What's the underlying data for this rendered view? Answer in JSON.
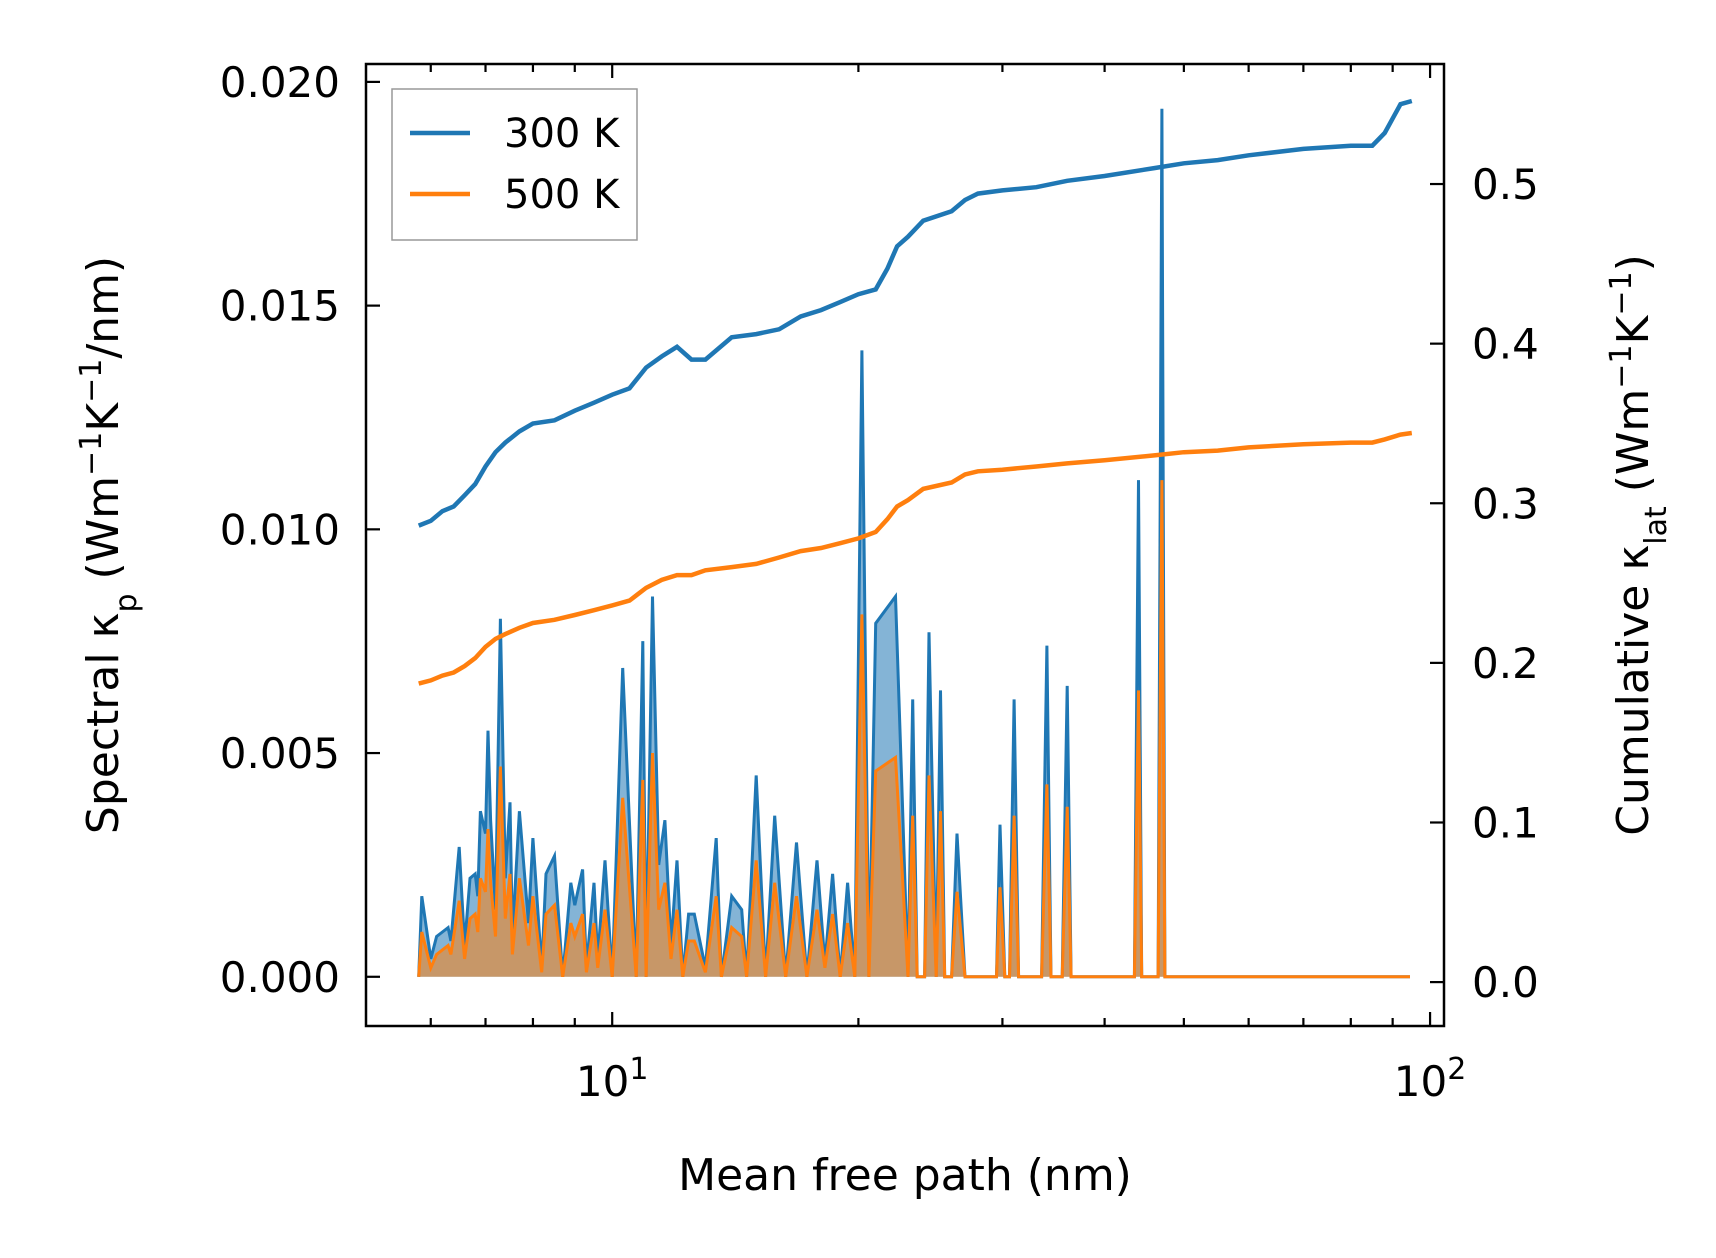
{
  "chart_data": {
    "type": "line",
    "xlabel": "Mean free path (nm)",
    "ylabel_left": {
      "main": "Spectral κ",
      "sub": "p",
      "units": " (Wm",
      "sup1": "−1",
      "k": "K",
      "sup2": "−1",
      "tail": "/nm)"
    },
    "ylabel_right": {
      "main": "Cumulative κ",
      "sub": "lat",
      "units": " (Wm",
      "sup1": "−1",
      "k": "K",
      "sup2": "−1",
      "tail": ")"
    },
    "xscale": "log",
    "xlim": [
      5.0,
      104.0
    ],
    "ylim_left": [
      -0.0011,
      0.0204
    ],
    "ylim_right": [
      -0.0275,
      0.5752
    ],
    "xticks": [
      {
        "base": "10",
        "exp": "1",
        "value": 10
      },
      {
        "base": "10",
        "exp": "2",
        "value": 100
      }
    ],
    "yticks_left": [
      {
        "label": "0.000",
        "value": 0.0
      },
      {
        "label": "0.005",
        "value": 0.005
      },
      {
        "label": "0.010",
        "value": 0.01
      },
      {
        "label": "0.015",
        "value": 0.015
      },
      {
        "label": "0.020",
        "value": 0.02
      }
    ],
    "yticks_right": [
      {
        "label": "0.0",
        "value": 0.0
      },
      {
        "label": "0.1",
        "value": 0.1
      },
      {
        "label": "0.2",
        "value": 0.2
      },
      {
        "label": "0.3",
        "value": 0.3
      },
      {
        "label": "0.4",
        "value": 0.4
      },
      {
        "label": "0.5",
        "value": 0.5
      }
    ],
    "legend": {
      "placement": "top-left",
      "entries": [
        "300 K",
        "500 K"
      ]
    },
    "colors": {
      "s300": "#1f77b4",
      "s500": "#ff7f0e",
      "fill300": "#1f77b4",
      "fill500": "#ff7f0e"
    },
    "spectral_300K": {
      "x": [
        5.8,
        5.85,
        6.0,
        6.1,
        6.2,
        6.3,
        6.35,
        6.5,
        6.6,
        6.7,
        6.8,
        6.85,
        6.9,
        7.0,
        7.05,
        7.1,
        7.2,
        7.3,
        7.4,
        7.5,
        7.55,
        7.7,
        7.9,
        8.0,
        8.2,
        8.3,
        8.5,
        8.7,
        8.9,
        9.0,
        9.2,
        9.3,
        9.5,
        9.6,
        9.8,
        10.0,
        10.3,
        10.7,
        10.9,
        11.0,
        11.2,
        11.4,
        11.6,
        11.8,
        12.0,
        12.2,
        12.4,
        12.6,
        13.0,
        13.4,
        13.6,
        14.0,
        14.4,
        14.6,
        15.0,
        15.4,
        15.8,
        16.3,
        16.8,
        17.3,
        17.8,
        18.2,
        18.6,
        19.0,
        19.4,
        19.8,
        20.2,
        20.6,
        21.0,
        22.2,
        22.6,
        23.0,
        23.3,
        23.6,
        24.1,
        24.4,
        24.9,
        25.2,
        25.5,
        26.0,
        26.4,
        27.0,
        29.5,
        29.8,
        30.2,
        30.6,
        31.0,
        31.4,
        33.5,
        34.0,
        34.4,
        35.5,
        36.0,
        36.4,
        43.5,
        44.0,
        44.4,
        46.5,
        47.0,
        47.4,
        55.0,
        55.5,
        56.0,
        59.0,
        59.5,
        60.0,
        87.0,
        88.0,
        89.0,
        91.0,
        92.0,
        93.0,
        94.5
      ],
      "y": [
        0.0,
        0.0018,
        0.0004,
        0.0009,
        0.001,
        0.0011,
        0.0008,
        0.0029,
        0.0007,
        0.0022,
        0.0023,
        0.0018,
        0.0037,
        0.0032,
        0.0055,
        0.0035,
        0.0015,
        0.008,
        0.0022,
        0.0039,
        0.0009,
        0.0037,
        0.0012,
        0.0031,
        0.0002,
        0.0023,
        0.0027,
        0.0,
        0.0021,
        0.0016,
        0.0024,
        0.0002,
        0.0021,
        0.0004,
        0.0026,
        0.0,
        0.0069,
        0.0,
        0.0075,
        0.0,
        0.0085,
        0.0025,
        0.0035,
        0.0007,
        0.0026,
        0.0,
        0.0014,
        0.0014,
        0.0002,
        0.0031,
        0.0,
        0.0018,
        0.0015,
        0.0,
        0.0045,
        0.0,
        0.0036,
        0.0,
        0.003,
        0.0,
        0.0026,
        0.0003,
        0.0023,
        0.0,
        0.0021,
        0.0,
        0.014,
        0.0,
        0.0079,
        0.0085,
        0.0043,
        0.0,
        0.0062,
        0.0,
        0.0,
        0.0077,
        0.0,
        0.0064,
        0.0,
        0.0,
        0.0032,
        0.0,
        0.0,
        0.0034,
        0.0,
        0.0,
        0.0062,
        0.0,
        0.0,
        0.0074,
        0.0,
        0.0,
        0.0065,
        0.0,
        0.0,
        0.0111,
        0.0,
        0.0,
        0.0194,
        0.0,
        0.0,
        0.0,
        0.0,
        0.0,
        0.0,
        0.0,
        0.0,
        0.0,
        0.0,
        0.0,
        0.0,
        0.0,
        0.0
      ]
    },
    "spectral_500K": {
      "x": [
        5.8,
        5.85,
        6.0,
        6.1,
        6.2,
        6.3,
        6.35,
        6.5,
        6.6,
        6.7,
        6.8,
        6.85,
        6.9,
        7.0,
        7.05,
        7.1,
        7.2,
        7.3,
        7.4,
        7.5,
        7.55,
        7.7,
        7.9,
        8.0,
        8.2,
        8.3,
        8.5,
        8.7,
        8.9,
        9.0,
        9.2,
        9.3,
        9.5,
        9.6,
        9.8,
        10.0,
        10.3,
        10.7,
        10.9,
        11.0,
        11.2,
        11.4,
        11.6,
        11.8,
        12.0,
        12.2,
        12.4,
        12.6,
        13.0,
        13.4,
        13.6,
        14.0,
        14.4,
        14.6,
        15.0,
        15.4,
        15.8,
        16.3,
        16.8,
        17.3,
        17.8,
        18.2,
        18.6,
        19.0,
        19.4,
        19.8,
        20.2,
        20.6,
        21.0,
        22.2,
        22.6,
        23.0,
        23.3,
        23.6,
        24.1,
        24.4,
        24.9,
        25.2,
        25.5,
        26.0,
        26.4,
        27.0,
        29.5,
        29.8,
        30.2,
        30.6,
        31.0,
        31.4,
        33.5,
        34.0,
        34.4,
        35.5,
        36.0,
        36.4,
        43.5,
        44.0,
        44.4,
        46.5,
        47.0,
        47.4,
        55.0,
        55.5,
        56.0,
        59.0,
        59.5,
        60.0,
        87.0,
        88.0,
        89.0,
        91.0,
        92.0,
        93.0,
        94.5
      ],
      "y": [
        0.0,
        0.001,
        0.0002,
        0.0005,
        0.0006,
        0.0007,
        0.0005,
        0.0017,
        0.0004,
        0.0013,
        0.0014,
        0.001,
        0.0022,
        0.0019,
        0.0033,
        0.0021,
        0.0009,
        0.0047,
        0.0013,
        0.0023,
        0.0005,
        0.0022,
        0.0007,
        0.0018,
        0.0001,
        0.0014,
        0.0016,
        0.0,
        0.0012,
        0.0009,
        0.0014,
        0.0001,
        0.0012,
        0.0002,
        0.0015,
        0.0,
        0.004,
        0.0,
        0.0044,
        0.0,
        0.005,
        0.0015,
        0.0021,
        0.0004,
        0.0015,
        0.0,
        0.0008,
        0.0008,
        0.0001,
        0.0018,
        0.0,
        0.0011,
        0.0009,
        0.0,
        0.0026,
        0.0,
        0.0021,
        0.0,
        0.0018,
        0.0,
        0.0015,
        0.0002,
        0.0014,
        0.0,
        0.0012,
        0.0,
        0.0081,
        0.0,
        0.0046,
        0.0049,
        0.0025,
        0.0,
        0.0036,
        0.0,
        0.0,
        0.0045,
        0.0,
        0.0037,
        0.0,
        0.0,
        0.0019,
        0.0,
        0.0,
        0.002,
        0.0,
        0.0,
        0.0036,
        0.0,
        0.0,
        0.0043,
        0.0,
        0.0,
        0.0038,
        0.0,
        0.0,
        0.0064,
        0.0,
        0.0,
        0.0111,
        0.0,
        0.0,
        0.0,
        0.0,
        0.0,
        0.0,
        0.0,
        0.0,
        0.0,
        0.0,
        0.0,
        0.0,
        0.0,
        0.0
      ]
    },
    "cumulative_300K": {
      "x": [
        5.8,
        6.0,
        6.2,
        6.4,
        6.6,
        6.8,
        7.0,
        7.2,
        7.4,
        7.7,
        8.0,
        8.5,
        9.0,
        9.5,
        10.0,
        10.5,
        11.0,
        11.5,
        12.0,
        12.5,
        13.0,
        14.0,
        15.0,
        16.0,
        17.0,
        18.0,
        19.0,
        20.0,
        21.0,
        21.7,
        22.3,
        23.0,
        24.0,
        26.0,
        27.0,
        28.0,
        30.0,
        33.0,
        36.0,
        40.0,
        46.0,
        50.0,
        55.0,
        60.0,
        70.0,
        80.0,
        85.0,
        88.0,
        92.0,
        95.0
      ],
      "y": [
        0.286,
        0.289,
        0.295,
        0.298,
        0.305,
        0.312,
        0.323,
        0.332,
        0.338,
        0.345,
        0.35,
        0.352,
        0.358,
        0.363,
        0.368,
        0.372,
        0.385,
        0.392,
        0.398,
        0.39,
        0.39,
        0.404,
        0.406,
        0.409,
        0.417,
        0.421,
        0.426,
        0.431,
        0.434,
        0.447,
        0.461,
        0.467,
        0.477,
        0.483,
        0.49,
        0.494,
        0.496,
        0.498,
        0.502,
        0.505,
        0.51,
        0.513,
        0.515,
        0.518,
        0.522,
        0.524,
        0.524,
        0.532,
        0.55,
        0.552
      ]
    },
    "cumulative_500K": {
      "x": [
        5.8,
        6.0,
        6.2,
        6.4,
        6.6,
        6.8,
        7.0,
        7.2,
        7.4,
        7.7,
        8.0,
        8.5,
        9.0,
        9.5,
        10.0,
        10.5,
        11.0,
        11.5,
        12.0,
        12.5,
        13.0,
        14.0,
        15.0,
        16.0,
        17.0,
        18.0,
        19.0,
        20.0,
        21.0,
        21.7,
        22.3,
        23.0,
        24.0,
        26.0,
        27.0,
        28.0,
        30.0,
        33.0,
        36.0,
        40.0,
        46.0,
        50.0,
        55.0,
        60.0,
        70.0,
        80.0,
        85.0,
        88.0,
        92.0,
        95.0
      ],
      "y": [
        0.187,
        0.189,
        0.192,
        0.194,
        0.198,
        0.203,
        0.21,
        0.215,
        0.218,
        0.222,
        0.225,
        0.227,
        0.23,
        0.233,
        0.236,
        0.239,
        0.247,
        0.252,
        0.255,
        0.255,
        0.258,
        0.26,
        0.262,
        0.266,
        0.27,
        0.272,
        0.275,
        0.278,
        0.282,
        0.29,
        0.298,
        0.302,
        0.309,
        0.313,
        0.318,
        0.32,
        0.321,
        0.323,
        0.325,
        0.327,
        0.33,
        0.332,
        0.333,
        0.335,
        0.337,
        0.338,
        0.338,
        0.34,
        0.343,
        0.344
      ]
    }
  }
}
